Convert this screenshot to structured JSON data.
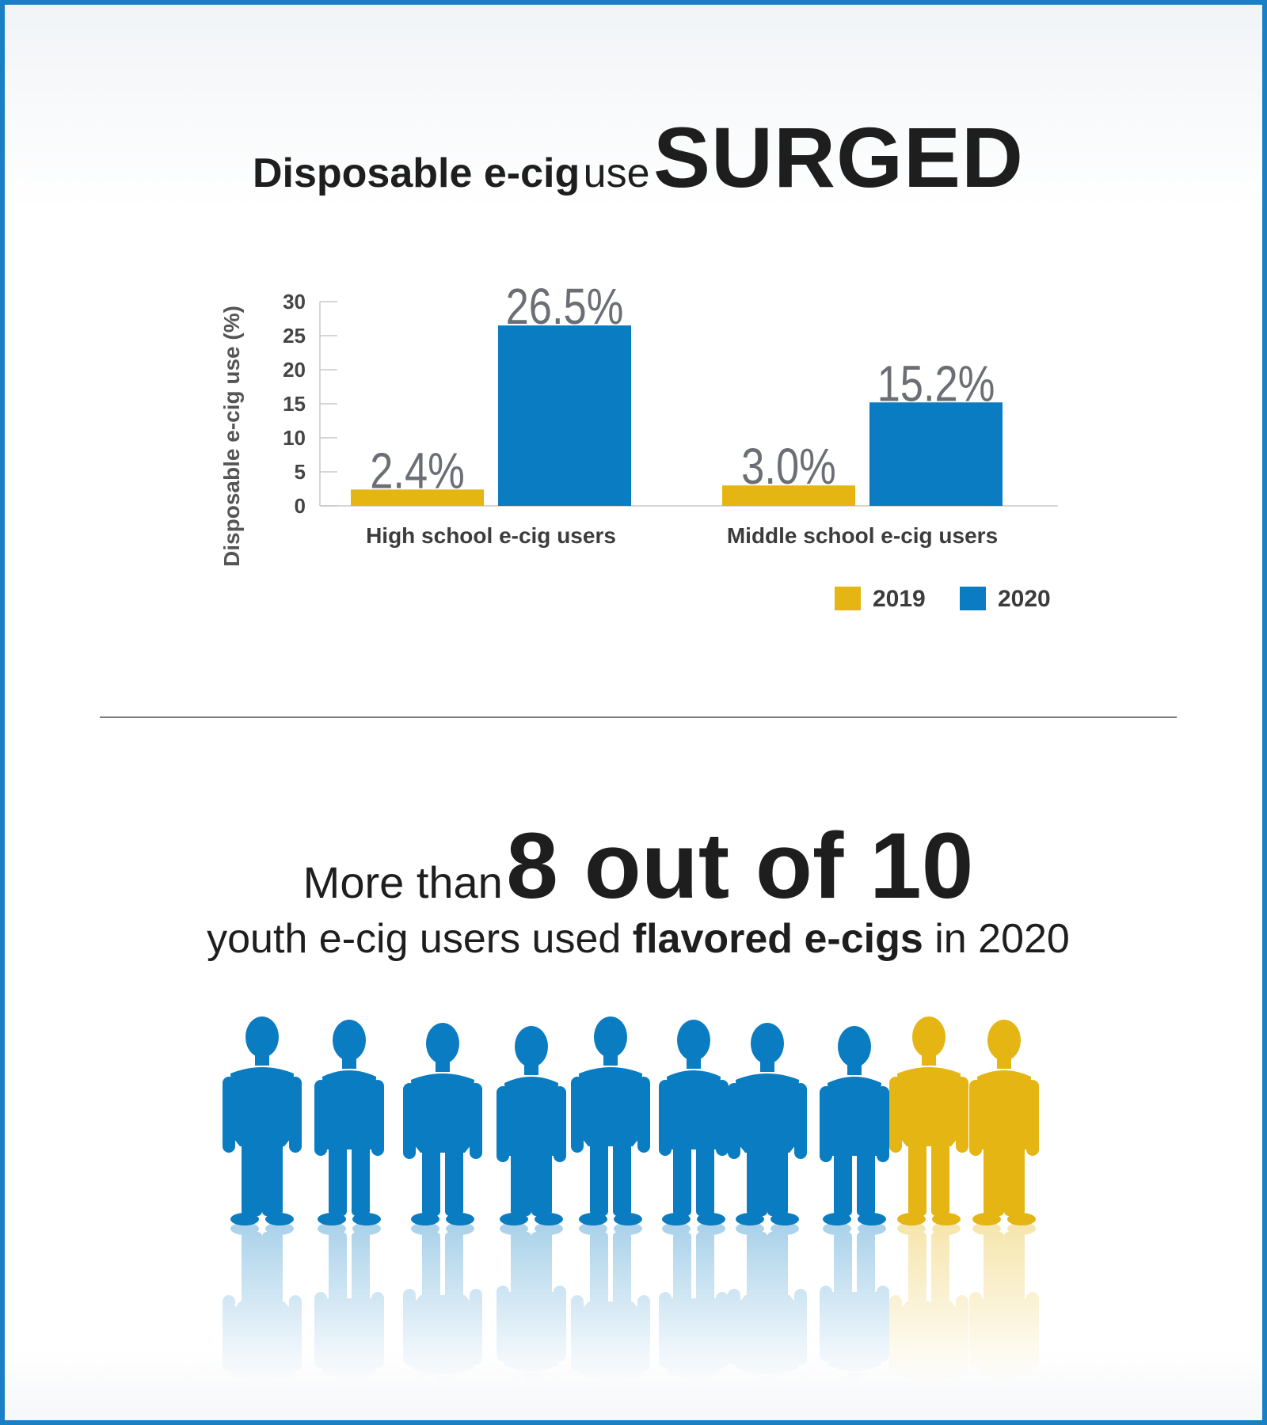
{
  "headline": {
    "part1": "Disposable e-cig",
    "part2": "use",
    "part3": "SURGED"
  },
  "chart_data": {
    "type": "bar",
    "title": "",
    "ylabel": "Disposable e-cig use (%)",
    "xlabel": "",
    "categories": [
      "High school e-cig users",
      "Middle school e-cig users"
    ],
    "series": [
      {
        "name": "2019",
        "values": [
          2.4,
          3.0
        ],
        "labels": [
          "2.4%",
          "3.0%"
        ],
        "color": "#e4b513"
      },
      {
        "name": "2020",
        "values": [
          26.5,
          15.2
        ],
        "labels": [
          "26.5%",
          "15.2%"
        ],
        "color": "#0a7cc1"
      }
    ],
    "ylim": [
      0,
      30
    ],
    "yticks": [
      0,
      5,
      10,
      15,
      20,
      25,
      30
    ],
    "grid": false,
    "legend": "bottom-right"
  },
  "stat": {
    "pre": "More than",
    "big": "8 out of 10",
    "line2_a": "youth e-cig users used",
    "line2_b": "flavored e-cigs",
    "line2_c": "in 2020"
  },
  "people": {
    "total": 10,
    "highlighted": 8,
    "color_main": "#0a7cc1",
    "color_other": "#e4b513"
  }
}
